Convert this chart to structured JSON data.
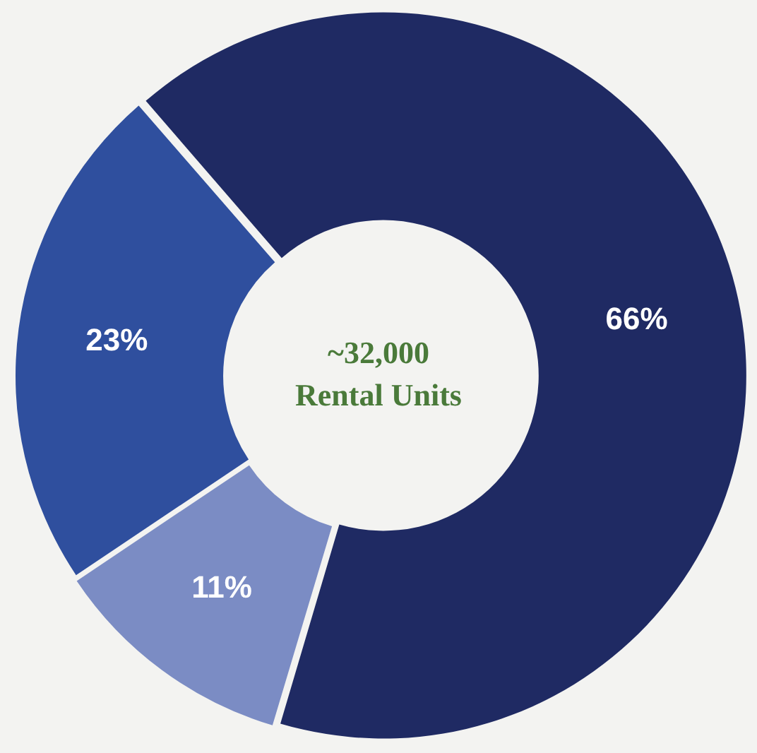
{
  "chart_data": {
    "type": "donut",
    "categories": [
      null,
      null,
      null
    ],
    "values": [
      66,
      11,
      23
    ],
    "colors": [
      "#1f2a63",
      "#7b8cc4",
      "#2f4f9e"
    ],
    "value_labels": [
      "66%",
      "11%",
      "23%"
    ],
    "annotations": [
      "~32,000",
      "Rental Units"
    ],
    "legend": false
  }
}
